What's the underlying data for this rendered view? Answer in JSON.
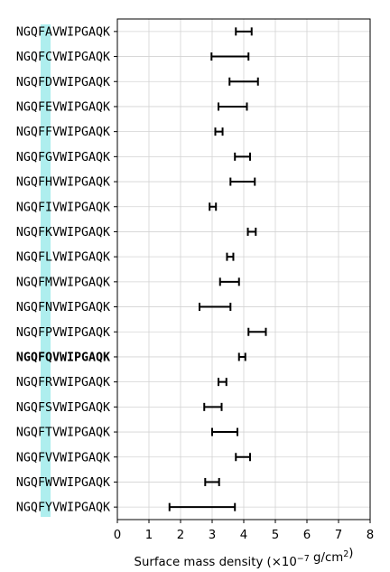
{
  "chart_data": {
    "type": "errorbar",
    "orientation": "horizontal",
    "xlabel_prefix": "Surface mass density (×10",
    "xlabel_exp": "−7",
    "xlabel_units": " g/cm",
    "xlabel_units_exp": "2",
    "xlabel_suffix": ")",
    "xlim": [
      0,
      8
    ],
    "xticks": [
      "0",
      "1",
      "2",
      "3",
      "4",
      "5",
      "6",
      "7",
      "8"
    ],
    "grid": true,
    "highlight_color": "#aeeeee",
    "bold_label": "NGQFQVWIPGAQK",
    "categories": [
      "NGQFAVWIPGAQK",
      "NGQFCVWIPGAQK",
      "NGQFDVWIPGAQK",
      "NGQFEVWIPGAQK",
      "NGQFFVWIPGAQK",
      "NGQFGVWIPGAQK",
      "NGQFHVWIPGAQK",
      "NGQFIVWIPGAQK",
      "NGQFKVWIPGAQK",
      "NGQFLVWIPGAQK",
      "NGQFMVWIPGAQK",
      "NGQFNVWIPGAQK",
      "NGQFPVWIPGAQK",
      "NGQFQVWIPGAQK",
      "NGQFRVWIPGAQK",
      "NGQFSVWIPGAQK",
      "NGQFTVWIPGAQK",
      "NGQFVVWIPGAQK",
      "NGQFWVWIPGAQK",
      "NGQFYVWIPGAQK"
    ],
    "ranges": [
      [
        3.75,
        4.25
      ],
      [
        2.98,
        4.15
      ],
      [
        3.55,
        4.45
      ],
      [
        3.2,
        4.1
      ],
      [
        3.1,
        3.33
      ],
      [
        3.72,
        4.2
      ],
      [
        3.58,
        4.35
      ],
      [
        2.92,
        3.12
      ],
      [
        4.13,
        4.38
      ],
      [
        3.47,
        3.67
      ],
      [
        3.25,
        3.85
      ],
      [
        2.6,
        3.58
      ],
      [
        4.15,
        4.7
      ],
      [
        3.85,
        4.05
      ],
      [
        3.2,
        3.45
      ],
      [
        2.75,
        3.3
      ],
      [
        3.0,
        3.8
      ],
      [
        3.75,
        4.2
      ],
      [
        2.78,
        3.22
      ],
      [
        1.65,
        3.72
      ]
    ]
  }
}
